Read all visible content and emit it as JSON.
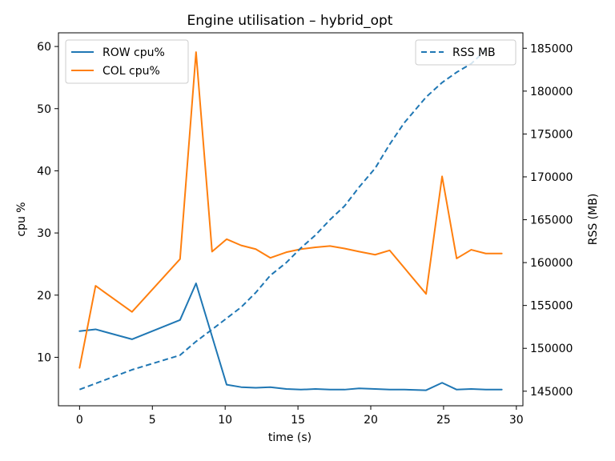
{
  "chart_data": {
    "type": "line",
    "title": "Engine utilisation – hybrid_opt",
    "xlabel": "time (s)",
    "ylabel": "cpu %",
    "y2label": "RSS (MB)",
    "xlim": [
      -1.45,
      30.45
    ],
    "ylim": [
      2.2,
      62.2
    ],
    "y2lim": [
      143300,
      186800
    ],
    "xticks": [
      0,
      5,
      10,
      15,
      20,
      25,
      30
    ],
    "yticks": [
      10,
      20,
      30,
      40,
      50,
      60
    ],
    "y2ticks": [
      145000,
      150000,
      155000,
      160000,
      165000,
      170000,
      175000,
      180000,
      185000
    ],
    "legend_left_position": "upper left",
    "legend_right_position": "upper right",
    "series": [
      {
        "name": "ROW cpu%",
        "axis": "left",
        "color": "#1f77b4",
        "style": "solid",
        "x": [
          0.0,
          1.1,
          3.6,
          6.9,
          8.0,
          10.1,
          11.1,
          12.1,
          13.1,
          14.2,
          15.2,
          16.2,
          17.2,
          18.2,
          19.2,
          20.3,
          21.3,
          22.3,
          23.8,
          24.9,
          25.9,
          26.9,
          27.9,
          29.0
        ],
        "y": [
          14.2,
          14.5,
          12.9,
          16.0,
          21.9,
          5.6,
          5.2,
          5.1,
          5.2,
          4.9,
          4.8,
          4.9,
          4.8,
          4.8,
          5.0,
          4.9,
          4.8,
          4.8,
          4.7,
          5.9,
          4.8,
          4.9,
          4.8,
          4.8
        ]
      },
      {
        "name": "COL cpu%",
        "axis": "left",
        "color": "#ff7f0e",
        "style": "solid",
        "x": [
          0.0,
          1.1,
          3.6,
          6.9,
          8.0,
          9.1,
          10.1,
          11.1,
          12.1,
          13.1,
          14.2,
          15.2,
          16.2,
          17.2,
          18.2,
          19.2,
          20.3,
          21.3,
          23.8,
          24.9,
          25.9,
          26.9,
          27.9,
          29.0
        ],
        "y": [
          8.3,
          21.5,
          17.3,
          25.8,
          59.1,
          27.0,
          29.0,
          28.0,
          27.4,
          26.0,
          26.9,
          27.4,
          27.7,
          27.9,
          27.5,
          27.0,
          26.5,
          27.2,
          20.2,
          39.1,
          25.9,
          27.3,
          26.7,
          26.7
        ]
      },
      {
        "name": "RSS MB",
        "axis": "right",
        "color": "#1f77b4",
        "style": "dashed",
        "x": [
          0.0,
          1.1,
          3.6,
          6.9,
          8.0,
          9.1,
          10.1,
          11.1,
          12.1,
          13.1,
          14.2,
          15.2,
          16.2,
          17.2,
          18.2,
          19.2,
          20.3,
          21.3,
          22.3,
          23.8,
          24.9,
          25.9,
          26.9,
          27.9
        ],
        "y": [
          145200,
          145900,
          147500,
          149200,
          150800,
          152200,
          153500,
          154800,
          156500,
          158500,
          160000,
          161700,
          163200,
          165000,
          166600,
          168800,
          171000,
          173800,
          176300,
          179300,
          181000,
          182200,
          183200,
          184800
        ]
      }
    ]
  }
}
